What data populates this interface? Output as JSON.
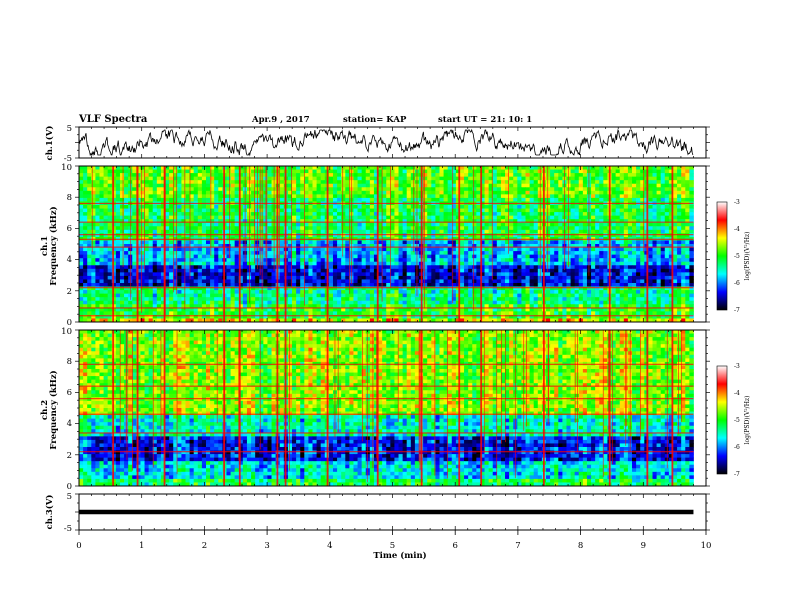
{
  "header": {
    "title": "VLF Spectra",
    "date": "Apr.9  , 2017",
    "station": "station= KAP",
    "start": "start  UT =   21: 10: 1"
  },
  "colorbar": {
    "label": "log(PSD)(V²/Hz)",
    "ticks": [
      "-3",
      "-4",
      "-5",
      "-6",
      "-7"
    ],
    "colors": [
      "#ffffff",
      "#ff0000",
      "#ffff00",
      "#00ff00",
      "#00ffff",
      "#0000ff",
      "#000000"
    ]
  },
  "chart_data": [
    {
      "type": "line",
      "panel": "ch1-waveform",
      "ylabel": "ch.1(V)",
      "ylim": [
        -5,
        5
      ],
      "xlim": [
        0,
        10
      ],
      "y_tick_labels": [
        "5",
        "-5"
      ],
      "trace_color": "#000000",
      "note": "noisy waveform hovering near 0 V"
    },
    {
      "type": "heatmap",
      "panel": "ch1-spectrogram",
      "ylabel_lines": [
        "ch.1",
        "Frequency  (kHz)"
      ],
      "ylim": [
        0,
        10
      ],
      "xlim": [
        0,
        9.8
      ],
      "y_tick_labels": [
        "0",
        "2",
        "4",
        "6",
        "8",
        "10"
      ],
      "zlim": [
        -7,
        -3
      ],
      "bands": [
        {
          "f_kHz": [
            0,
            0.3
          ],
          "level": -3.8
        },
        {
          "f_kHz": [
            0.3,
            1.2
          ],
          "level": -4.6
        },
        {
          "f_kHz": [
            1.2,
            2.2
          ],
          "level": -5.0
        },
        {
          "f_kHz": [
            2.2,
            3.6
          ],
          "level": -6.3
        },
        {
          "f_kHz": [
            3.6,
            5.3
          ],
          "level": -5.6
        },
        {
          "f_kHz": [
            5.3,
            8.0
          ],
          "level": -4.8
        },
        {
          "f_kHz": [
            8.0,
            10.0
          ],
          "level": -4.4
        }
      ],
      "horizontal_lines_kHz": [
        0.4,
        0.9,
        2.2,
        4.8,
        5.3,
        5.6,
        6.4,
        7.6
      ],
      "impulsive_columns_min": [
        0.53,
        0.92,
        1.35,
        2.3,
        2.55,
        3.15,
        3.28,
        3.95,
        4.75,
        5.45,
        6.05,
        6.4,
        7.4,
        8.45,
        9.05,
        9.45
      ]
    },
    {
      "type": "heatmap",
      "panel": "ch2-spectrogram",
      "ylabel_lines": [
        "ch.2",
        "Frequency  (kHz)"
      ],
      "ylim": [
        0,
        10
      ],
      "xlim": [
        0,
        9.8
      ],
      "y_tick_labels": [
        "0",
        "2",
        "4",
        "6",
        "8",
        "10"
      ],
      "zlim": [
        -7,
        -3
      ],
      "bands": [
        {
          "f_kHz": [
            0,
            0.5
          ],
          "level": -4.8
        },
        {
          "f_kHz": [
            0.5,
            1.7
          ],
          "level": -5.4
        },
        {
          "f_kHz": [
            1.7,
            3.2
          ],
          "level": -6.2
        },
        {
          "f_kHz": [
            3.2,
            4.6
          ],
          "level": -5.2
        },
        {
          "f_kHz": [
            4.6,
            10.0
          ],
          "level": -4.2
        }
      ],
      "horizontal_lines_kHz": [
        2.2,
        3.4,
        4.6,
        5.6,
        6.4,
        7.8
      ],
      "impulsive_columns_min": [
        0.53,
        0.92,
        1.35,
        2.3,
        2.55,
        3.15,
        3.28,
        3.95,
        4.75,
        5.45,
        6.05,
        6.4,
        7.4,
        8.45,
        9.05,
        9.45
      ]
    },
    {
      "type": "line",
      "panel": "ch3-waveform",
      "ylabel": "ch.3(V)",
      "ylim": [
        -5,
        5
      ],
      "xlim": [
        0,
        10
      ],
      "y_tick_labels": [
        "5",
        "-5"
      ],
      "trace_color": "#000000",
      "values": [
        {
          "x": 0,
          "y": 0
        },
        {
          "x": 9.8,
          "y": 0
        }
      ],
      "xlabel": "Time  (min)",
      "x_tick_labels": [
        "0",
        "1",
        "2",
        "3",
        "4",
        "5",
        "6",
        "7",
        "8",
        "9",
        "10"
      ]
    }
  ]
}
